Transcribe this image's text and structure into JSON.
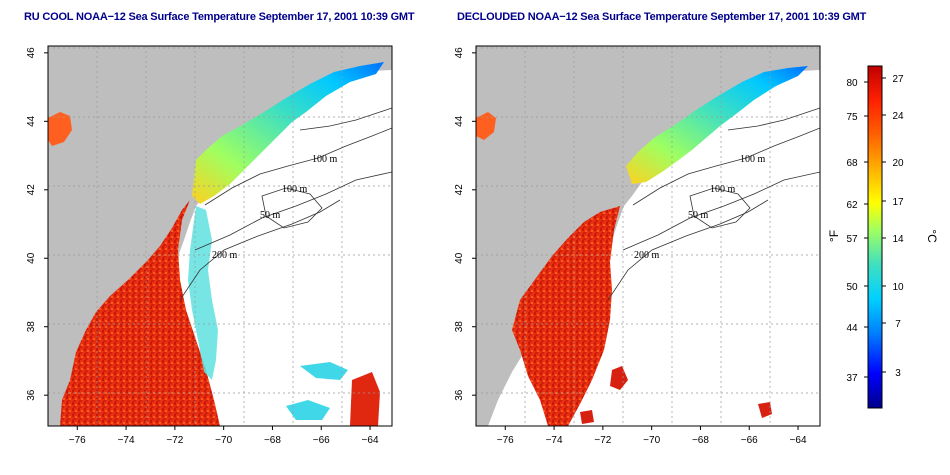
{
  "panels": [
    {
      "title": "RU COOL NOAA−12 Sea Surface Temperature September 17, 2001 10:39 GMT",
      "contour_labels": [
        "100 m",
        "100 m",
        "50 m",
        "200 m"
      ]
    },
    {
      "title": "DECLOUDED NOAA−12 Sea Surface Temperature September 17, 2001 10:39 GMT",
      "contour_labels": [
        "100 m",
        "100 m",
        "50 m",
        "200 m"
      ]
    }
  ],
  "axes": {
    "x_ticks": [
      -76,
      -74,
      -72,
      -70,
      -68,
      -66,
      -64
    ],
    "x_tick_labels": [
      "−76",
      "−74",
      "−72",
      "−70",
      "−68",
      "−66",
      "−64"
    ],
    "y_ticks": [
      36,
      38,
      40,
      42,
      44,
      46
    ],
    "y_tick_labels": [
      "36",
      "38",
      "40",
      "42",
      "44",
      "46"
    ],
    "xlim": [
      -77.2,
      -63.1
    ],
    "ylim": [
      35.1,
      46.2
    ]
  },
  "colorbar": {
    "celsius_ticks": [
      "27",
      "24",
      "20",
      "17",
      "14",
      "10",
      "7",
      "3"
    ],
    "fahrenheit_ticks": [
      "80",
      "75",
      "68",
      "62",
      "57",
      "50",
      "44",
      "37"
    ],
    "celsius_unit": "°C",
    "fahrenheit_unit": "°F",
    "colors": [
      "#00008b",
      "#0000ff",
      "#0080ff",
      "#00d0ff",
      "#40e0c0",
      "#a0ff60",
      "#ffff00",
      "#ffb000",
      "#ff6000",
      "#ff2000",
      "#c00000"
    ]
  },
  "colors": {
    "land": "#bebebe",
    "title": "#00008b"
  }
}
